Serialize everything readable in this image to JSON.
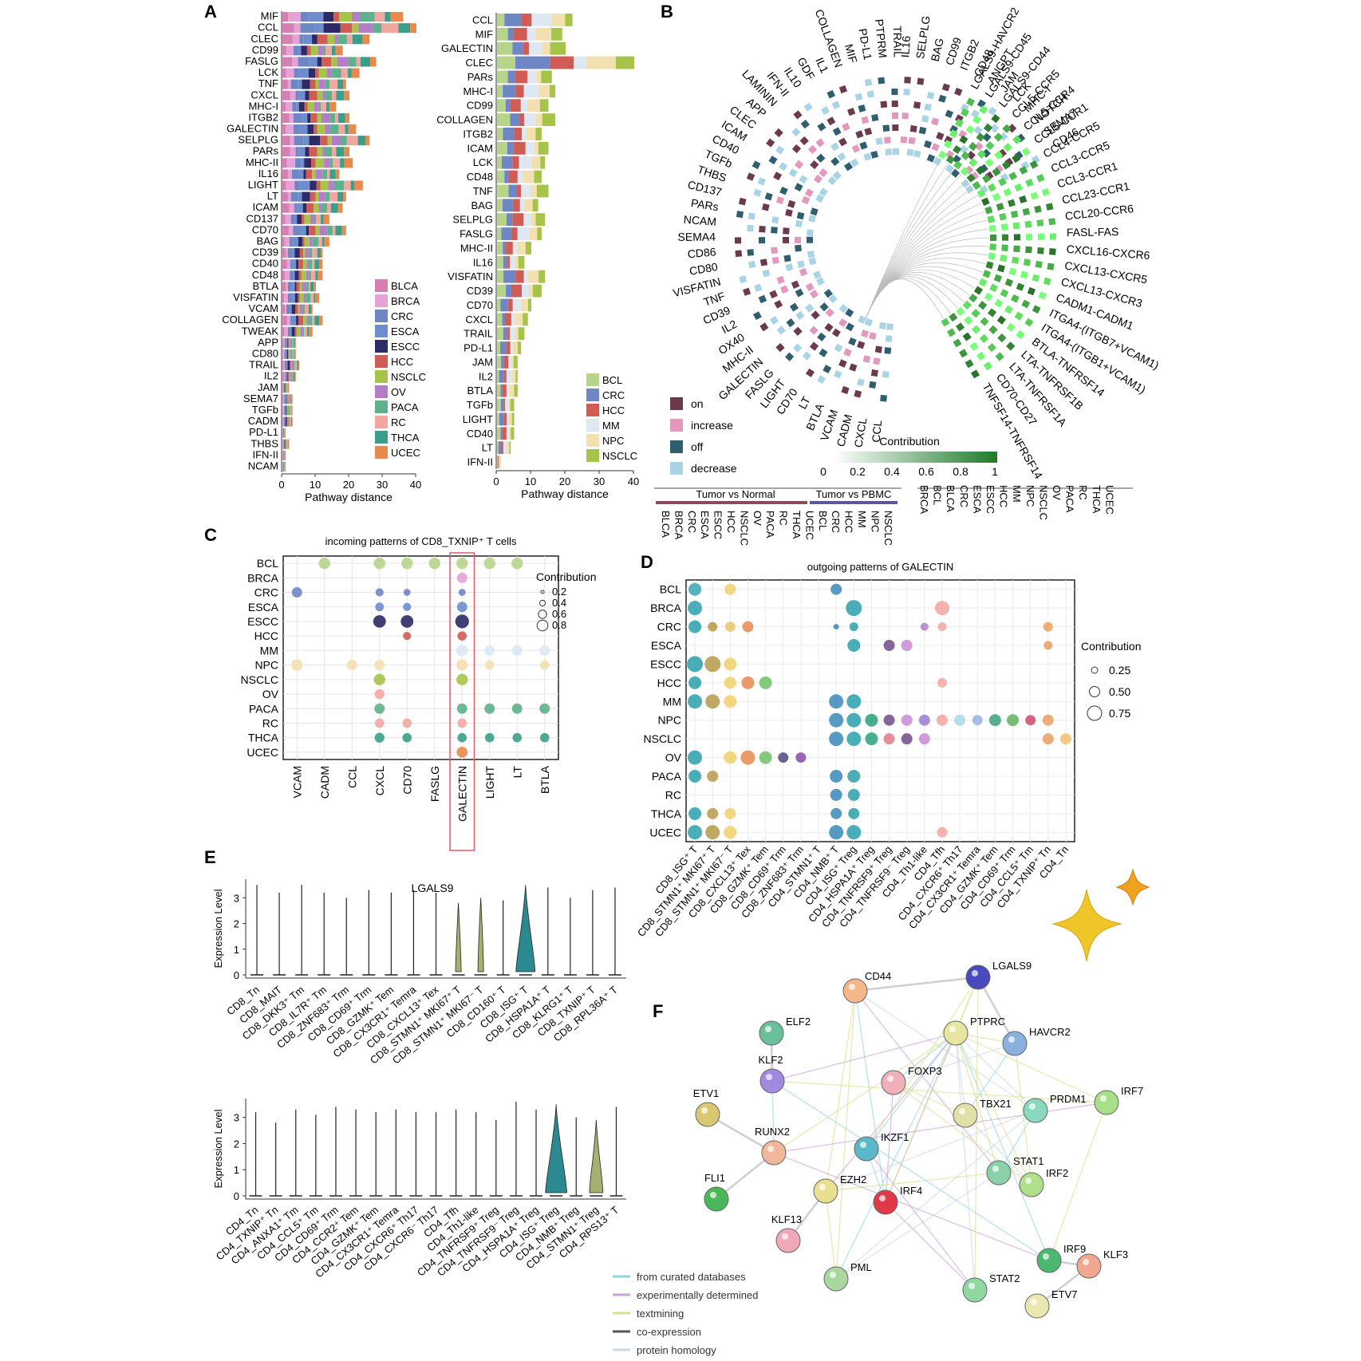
{
  "panel_letters": {
    "A": "A",
    "B": "B",
    "C": "C",
    "D": "D",
    "E": "E",
    "F": "F"
  },
  "colors": {
    "BLCA": "#d67fb2",
    "BRCA": "#e6a1d6",
    "CRC": "#6f86c4",
    "ESCA": "#6e8dcc",
    "ESCC": "#2e2a66",
    "HCC": "#cf5d56",
    "NSCLC": "#a6c34a",
    "OV": "#b37ec7",
    "PACA": "#5fb08c",
    "RC": "#f2a6a0",
    "THCA": "#3a9e8a",
    "UCEC": "#e88a4c",
    "BCL": "#b7d48a",
    "MM": "#dde8f3",
    "NPC": "#f3e0b0",
    "on": "#6b3a4f",
    "increase": "#e398be",
    "off": "#2f5f6e",
    "decrease": "#a8d4e6",
    "network_edge_curated": "#8fd4d8",
    "network_edge_experimental": "#c9a0d8",
    "network_edge_textmining": "#d8e08a",
    "network_edge_coexpression": "#555555",
    "network_edge_homology": "#c8d6e8"
  },
  "panel_A": {
    "left": {
      "categories": [
        "MIF",
        "CCL",
        "CLEC",
        "CD99",
        "FASLG",
        "LCK",
        "TNF",
        "CXCL",
        "MHC-I",
        "ITGB2",
        "GALECTIN",
        "SELPLG",
        "PARs",
        "MHC-II",
        "IL16",
        "LIGHT",
        "LT",
        "ICAM",
        "CD137",
        "CD70",
        "BAG",
        "CD39",
        "CD40",
        "CD48",
        "BTLA",
        "VISFATIN",
        "VCAM",
        "COLLAGEN",
        "TWEAK",
        "APP",
        "CD80",
        "TRAIL",
        "IL2",
        "JAM",
        "SEMA7",
        "TGFb",
        "CADM",
        "PD-L1",
        "THBS",
        "IFN-II",
        "NCAM"
      ],
      "totals": [
        36,
        40,
        26,
        18,
        28,
        23,
        19,
        20,
        16,
        20,
        22,
        26,
        20,
        21,
        17,
        24,
        19,
        18,
        14,
        19,
        14,
        12,
        12,
        12,
        10,
        11,
        9,
        12,
        9,
        4,
        4,
        5,
        4,
        2,
        3,
        3,
        3,
        1,
        2,
        1,
        1
      ],
      "legend": [
        "BLCA",
        "BRCA",
        "CRC",
        "ESCA",
        "ESCC",
        "HCC",
        "NSCLC",
        "OV",
        "PACA",
        "RC",
        "THCA",
        "UCEC"
      ],
      "xlabel": "Pathway distance",
      "xticks": [
        "0",
        "10",
        "20",
        "30",
        "40"
      ]
    },
    "right": {
      "categories": [
        "CCL",
        "MIF",
        "GALECTIN",
        "CLEC",
        "PARs",
        "MHC-I",
        "CD99",
        "COLLAGEN",
        "ITGB2",
        "ICAM",
        "LCK",
        "CD48",
        "TNF",
        "BAG",
        "SELPLG",
        "FASLG",
        "MHC-II",
        "IL16",
        "VISFATIN",
        "CD39",
        "CD70",
        "CXCL",
        "TRAIL",
        "PD-L1",
        "JAM",
        "IL2",
        "BTLA",
        "TGFb",
        "LIGHT",
        "CD40",
        "LT",
        "IFN-II"
      ],
      "totals": [
        22,
        19,
        20,
        40,
        16,
        17,
        15,
        17,
        13,
        15,
        14,
        13,
        15,
        12,
        14,
        13,
        10,
        8,
        14,
        13,
        10,
        9,
        8,
        7,
        6,
        6,
        6,
        5,
        5,
        5,
        4,
        1
      ],
      "legend": [
        "BCL",
        "CRC",
        "HCC",
        "MM",
        "NPC",
        "NSCLC"
      ],
      "xlabel": "Pathway distance",
      "xticks": [
        "0",
        "10",
        "20",
        "30",
        "40"
      ]
    }
  },
  "panel_B": {
    "left_labels": [
      "CCL",
      "CXCL",
      "CADM",
      "VCAM",
      "BTLA",
      "LT",
      "CD70",
      "LIGHT",
      "FASLG",
      "GALECTIN",
      "MHC-II",
      "OX40",
      "IL2",
      "CD39",
      "TNF",
      "VISFATIN",
      "CD80",
      "CD86",
      "SEMA4",
      "NCAM",
      "PARs",
      "CD137",
      "THBS",
      "TGFb",
      "CD40",
      "ICAM",
      "CLEC",
      "APP",
      "LAMININ",
      "IFN-II",
      "IL10",
      "GDF",
      "IL1",
      "COLLAGEN",
      "MIF",
      "PD-L1",
      "PTPRM",
      "TRAIL",
      "IL16",
      "SELPLG",
      "BAG",
      "CD99",
      "ITGB2",
      "CD48",
      "ANGPT",
      "JAM",
      "LCK",
      "MHC-I",
      "NOTCH",
      "SEMA7",
      "CD46"
    ],
    "right_labels": [
      "LGALS9-HAVCR2",
      "LGALS9-CD45",
      "LGALS9-CD44",
      "CCL5-CCR5",
      "CCL5-CCR4",
      "CCL5-CCR1",
      "CCL4-CCR5",
      "CCL3-CCR5",
      "CCL3-CCR1",
      "CCL23-CCR1",
      "CCL20-CCR6",
      "FASL-FAS",
      "CXCL16-CXCR6",
      "CXCL13-CXCR5",
      "CXCL13-CXCR3",
      "CADM1-CADM1",
      "ITGA4-(ITGB7+VCAM1)",
      "ITGA4-(ITGB1+VCAM1)",
      "BTLA-TNFRSF14",
      "LTA-TNFRSF1B",
      "LTA-TNFRSF1A",
      "CD70-CD27",
      "TNFSF14-TNFRSF14"
    ],
    "legend": [
      "on",
      "increase",
      "off",
      "decrease"
    ],
    "contribution_title": "Contribution",
    "contribution_ticks": [
      "0",
      "0.2",
      "0.4",
      "0.6",
      "0.8",
      "1"
    ],
    "group1": "Tumor vs Normal",
    "group2": "Tumor vs PBMC",
    "bottom_left": [
      "BLCA",
      "BRCA",
      "CRC",
      "ESCA",
      "ESCC",
      "HCC",
      "NSCLC",
      "OV",
      "PACA",
      "RC",
      "THCA",
      "UCEC",
      "BCL",
      "CRC",
      "HCC",
      "MM",
      "NPC",
      "NSCLC"
    ],
    "bottom_right": [
      "BRCA",
      "BCL",
      "BLCA",
      "CRC",
      "ESCA",
      "ESCC",
      "HCC",
      "MM",
      "NPC",
      "NSCLC",
      "OV",
      "PACA",
      "RC",
      "THCA",
      "UCEC"
    ]
  },
  "panel_C": {
    "title": "incoming patterns of CD8_TXNIP⁺ T cells",
    "rows": [
      "BCL",
      "BRCA",
      "CRC",
      "ESCA",
      "ESCC",
      "HCC",
      "MM",
      "NPC",
      "NSCLC",
      "OV",
      "PACA",
      "RC",
      "THCA",
      "UCEC"
    ],
    "cols": [
      "VCAM",
      "CADM",
      "CCL",
      "CXCL",
      "CD70",
      "FASLG",
      "GALECTIN",
      "LIGHT",
      "LT",
      "BTLA"
    ],
    "legend_title": "Contribution",
    "legend_values": [
      "0.2",
      "0.4",
      "0.6",
      "0.8"
    ],
    "points": [
      [
        0,
        1,
        0.6,
        "BCL"
      ],
      [
        0,
        3,
        0.6,
        "BCL"
      ],
      [
        0,
        4,
        0.6,
        "BCL"
      ],
      [
        0,
        5,
        0.6,
        "BCL"
      ],
      [
        0,
        6,
        0.6,
        "BCL"
      ],
      [
        0,
        7,
        0.6,
        "BCL"
      ],
      [
        0,
        8,
        0.6,
        "BCL"
      ],
      [
        1,
        6,
        0.5,
        "BRCA"
      ],
      [
        2,
        0,
        0.5,
        "CRC"
      ],
      [
        2,
        3,
        0.3,
        "CRC"
      ],
      [
        2,
        4,
        0.2,
        "CRC"
      ],
      [
        2,
        6,
        0.2,
        "CRC"
      ],
      [
        3,
        3,
        0.35,
        "ESCA"
      ],
      [
        3,
        4,
        0.3,
        "ESCA"
      ],
      [
        3,
        6,
        0.5,
        "ESCA"
      ],
      [
        4,
        3,
        0.7,
        "ESCC"
      ],
      [
        4,
        4,
        0.7,
        "ESCC"
      ],
      [
        4,
        6,
        0.8,
        "ESCC"
      ],
      [
        5,
        4,
        0.3,
        "HCC"
      ],
      [
        5,
        6,
        0.4,
        "HCC"
      ],
      [
        6,
        6,
        0.6,
        "MM"
      ],
      [
        6,
        7,
        0.5,
        "MM"
      ],
      [
        6,
        8,
        0.5,
        "MM"
      ],
      [
        6,
        9,
        0.5,
        "MM"
      ],
      [
        7,
        0,
        0.6,
        "NPC"
      ],
      [
        7,
        2,
        0.5,
        "NPC"
      ],
      [
        7,
        3,
        0.5,
        "NPC"
      ],
      [
        7,
        6,
        0.6,
        "NPC"
      ],
      [
        7,
        7,
        0.4,
        "NPC"
      ],
      [
        7,
        9,
        0.4,
        "NPC"
      ],
      [
        8,
        3,
        0.6,
        "NSCLC"
      ],
      [
        8,
        6,
        0.6,
        "NSCLC"
      ],
      [
        9,
        3,
        0.45,
        "RC"
      ],
      [
        10,
        3,
        0.5,
        "PACA"
      ],
      [
        10,
        6,
        0.5,
        "PACA"
      ],
      [
        10,
        7,
        0.5,
        "PACA"
      ],
      [
        10,
        8,
        0.5,
        "PACA"
      ],
      [
        10,
        9,
        0.5,
        "PACA"
      ],
      [
        11,
        3,
        0.4,
        "RC"
      ],
      [
        11,
        4,
        0.4,
        "RC"
      ],
      [
        11,
        6,
        0.4,
        "RC"
      ],
      [
        12,
        3,
        0.45,
        "THCA"
      ],
      [
        12,
        4,
        0.4,
        "THCA"
      ],
      [
        12,
        6,
        0.4,
        "THCA"
      ],
      [
        12,
        7,
        0.4,
        "THCA"
      ],
      [
        12,
        8,
        0.4,
        "THCA"
      ],
      [
        12,
        9,
        0.4,
        "THCA"
      ],
      [
        13,
        6,
        0.55,
        "UCEC"
      ]
    ]
  },
  "panel_D": {
    "title": "outgoing patterns of GALECTIN",
    "rows": [
      "BCL",
      "BRCA",
      "CRC",
      "ESCA",
      "ESCC",
      "HCC",
      "MM",
      "NPC",
      "NSCLC",
      "OV",
      "PACA",
      "RC",
      "THCA",
      "UCEC"
    ],
    "cols": [
      "CD8_ISG⁺ T",
      "CD8_STMN1⁺ MKI67⁺ T",
      "CD8_STMN1⁺ MKI67⁻ T",
      "CD8_CXCL13⁺ Tex",
      "CD8_GZMK⁺ Tem",
      "CD8_CD69⁺ Trm",
      "CD8_ZNF683⁺ Trm",
      "CD4_STMN1⁺ T",
      "CD4_NMB⁺ T",
      "CD4_ISG⁺ Treg",
      "CD4_HSPA1A⁺ Treg",
      "CD4_TNFRSF9⁺ Treg",
      "CD4_TNFRSF9⁻ Treg",
      "CD4_Th1-like",
      "CD4_Tfh",
      "CD4_CXCR6⁺ Th17",
      "CD4_CX3CR1⁺ Temra",
      "CD4_GZMK⁺ Tem",
      "CD4_CD69⁺ Trm",
      "CD4_CCL5⁺ Tm",
      "CD4_TXNIP⁺ Tn",
      "CD4_Tn"
    ],
    "legend_title": "Contribution",
    "legend_values": [
      "0.25",
      "0.50",
      "0.75"
    ],
    "points": [
      [
        0,
        0,
        0.6,
        "#3aa3b3"
      ],
      [
        0,
        2,
        0.5,
        "#f0cf6a"
      ],
      [
        0,
        8,
        0.5,
        "#3a8ab8"
      ],
      [
        1,
        0,
        0.7,
        "#2aa0ad"
      ],
      [
        1,
        9,
        0.8,
        "#2aa0ad"
      ],
      [
        1,
        14,
        0.7,
        "#f2a6a0"
      ],
      [
        2,
        0,
        0.6,
        "#2aa0ad"
      ],
      [
        2,
        1,
        0.4,
        "#b59a4a"
      ],
      [
        2,
        2,
        0.45,
        "#e6c86a"
      ],
      [
        2,
        3,
        0.5,
        "#e88a4c"
      ],
      [
        2,
        8,
        0.15,
        "#3a8ab8"
      ],
      [
        2,
        9,
        0.35,
        "#2aa0ad"
      ],
      [
        2,
        13,
        0.3,
        "#b37ec7"
      ],
      [
        2,
        14,
        0.35,
        "#f2a6a0"
      ],
      [
        2,
        20,
        0.4,
        "#e8a060"
      ],
      [
        3,
        9,
        0.6,
        "#2aa0ad"
      ],
      [
        3,
        11,
        0.5,
        "#6e4b8b"
      ],
      [
        3,
        12,
        0.5,
        "#c98ad6"
      ],
      [
        3,
        20,
        0.35,
        "#e8a060"
      ],
      [
        4,
        0,
        0.8,
        "#2aa0ad"
      ],
      [
        4,
        1,
        0.8,
        "#b59a4a"
      ],
      [
        4,
        2,
        0.6,
        "#f0cf6a"
      ],
      [
        5,
        0,
        0.6,
        "#2aa0ad"
      ],
      [
        5,
        2,
        0.55,
        "#f0cf6a"
      ],
      [
        5,
        3,
        0.6,
        "#e88a4c"
      ],
      [
        5,
        4,
        0.6,
        "#6fbf6a"
      ],
      [
        5,
        14,
        0.4,
        "#f2a6a0"
      ],
      [
        6,
        0,
        0.7,
        "#2aa0ad"
      ],
      [
        6,
        1,
        0.7,
        "#b59a4a"
      ],
      [
        6,
        2,
        0.6,
        "#f0cf6a"
      ],
      [
        6,
        8,
        0.7,
        "#3a8ab8"
      ],
      [
        6,
        9,
        0.7,
        "#2aa0ad"
      ],
      [
        7,
        8,
        0.7,
        "#3a8ab8"
      ],
      [
        7,
        9,
        0.7,
        "#2aa0ad"
      ],
      [
        7,
        10,
        0.6,
        "#27a07a"
      ],
      [
        7,
        11,
        0.5,
        "#6e4b8b"
      ],
      [
        7,
        12,
        0.5,
        "#c98ad6"
      ],
      [
        7,
        13,
        0.5,
        "#9a7ad6"
      ],
      [
        7,
        14,
        0.5,
        "#f2a6a0"
      ],
      [
        7,
        15,
        0.5,
        "#a8d8ea"
      ],
      [
        7,
        16,
        0.45,
        "#9ab0e0"
      ],
      [
        7,
        17,
        0.55,
        "#3aa080"
      ],
      [
        7,
        18,
        0.55,
        "#5fb05f"
      ],
      [
        7,
        19,
        0.45,
        "#d04a6a"
      ],
      [
        7,
        20,
        0.5,
        "#e8a060"
      ],
      [
        8,
        8,
        0.7,
        "#3a8ab8"
      ],
      [
        8,
        9,
        0.7,
        "#2aa0ad"
      ],
      [
        8,
        10,
        0.6,
        "#27a07a"
      ],
      [
        8,
        11,
        0.5,
        "#e07a8a"
      ],
      [
        8,
        12,
        0.5,
        "#6e4b8b"
      ],
      [
        8,
        13,
        0.5,
        "#c98ad6"
      ],
      [
        8,
        20,
        0.5,
        "#e8a060"
      ],
      [
        8,
        21,
        0.5,
        "#f0c070"
      ],
      [
        9,
        0,
        0.7,
        "#2aa0ad"
      ],
      [
        9,
        2,
        0.6,
        "#f0cf6a"
      ],
      [
        9,
        3,
        0.7,
        "#e88a4c"
      ],
      [
        9,
        4,
        0.6,
        "#6fbf6a"
      ],
      [
        9,
        5,
        0.45,
        "#4a4a7a"
      ],
      [
        9,
        6,
        0.45,
        "#8a4aa6"
      ],
      [
        10,
        0,
        0.6,
        "#2aa0ad"
      ],
      [
        10,
        1,
        0.5,
        "#b59a4a"
      ],
      [
        10,
        8,
        0.6,
        "#3a8ab8"
      ],
      [
        10,
        9,
        0.6,
        "#2aa0ad"
      ],
      [
        11,
        8,
        0.55,
        "#3a8ab8"
      ],
      [
        11,
        9,
        0.55,
        "#2aa0ad"
      ],
      [
        12,
        0,
        0.6,
        "#2aa0ad"
      ],
      [
        12,
        1,
        0.5,
        "#b59a4a"
      ],
      [
        12,
        2,
        0.5,
        "#f0cf6a"
      ],
      [
        12,
        8,
        0.5,
        "#3a8ab8"
      ],
      [
        12,
        9,
        0.5,
        "#2aa0ad"
      ],
      [
        13,
        0,
        0.7,
        "#2aa0ad"
      ],
      [
        13,
        1,
        0.7,
        "#b59a4a"
      ],
      [
        13,
        2,
        0.6,
        "#f0cf6a"
      ],
      [
        13,
        8,
        0.7,
        "#3a8ab8"
      ],
      [
        13,
        9,
        0.7,
        "#2aa0ad"
      ],
      [
        13,
        14,
        0.45,
        "#f2a6a0"
      ]
    ]
  },
  "panel_E": {
    "title": "LGALS9",
    "ylabel": "Expression Level",
    "yticks": [
      "0",
      "1",
      "2",
      "3"
    ],
    "top_groups": [
      "CD8_Tn",
      "CD8_MAIT",
      "CD8_DKK3⁺ Tm",
      "CD8_IL7R⁺ Tm",
      "CD8_ZNF683⁺ Trm",
      "CD8_CD69⁺ Trm",
      "CD8_GZMK⁺ Tem",
      "CD8_CX3CR1⁺ Temra",
      "CD8_CXCL13⁺ Tex",
      "CD8_STMN1⁺ MKI67⁺ T",
      "CD8_STMN1⁺ MKI67⁻ T",
      "CD8_CD160⁺ T",
      "CD8_ISG⁺ T",
      "CD8_HSPA1A⁺ T",
      "CD8_KLRG1⁺ T",
      "CD8_TXNIP⁺ T",
      "CD8_RPL36A⁺ T"
    ],
    "top_max": [
      3.5,
      3.2,
      3.5,
      3.2,
      3.0,
      3.3,
      3.2,
      3.3,
      3.2,
      2.8,
      3.0,
      2.9,
      3.5,
      3.4,
      3.0,
      3.3,
      3.4
    ],
    "top_width": [
      0.02,
      0.02,
      0.02,
      0.02,
      0.02,
      0.02,
      0.02,
      0.02,
      0.02,
      0.25,
      0.25,
      0.05,
      0.85,
      0.05,
      0.02,
      0.02,
      0.02
    ],
    "bottom_groups": [
      "CD4_Tn",
      "CD4_TXNIP⁺ Tn",
      "CD4_ANXA1⁺ Tm",
      "CD4_CCL5⁺ Tm",
      "CD4_CD69⁺ Trm",
      "CD4_CCR2⁺ Tem",
      "CD4_GZMK⁺ Tem",
      "CD4_CX3CR1⁺ Temra",
      "CD4_CXCR6⁺ Th17",
      "CD4_CXCR6⁻ Th17",
      "CD4_Tfh",
      "CD4_Th1-like",
      "CD4_TNFRSF9⁺ Treg",
      "CD4_TNFRSF9⁻ Treg",
      "CD4_HSPA1A⁺ Treg",
      "CD4_ISG⁺ Treg",
      "CD4_NMB⁺ Treg",
      "CD4_STMN1⁺ Treg",
      "CD4_RPS13⁺ T"
    ],
    "bottom_max": [
      3.2,
      2.8,
      3.3,
      3.1,
      3.4,
      3.3,
      3.2,
      3.3,
      3.2,
      3.2,
      3.3,
      3.2,
      2.9,
      3.6,
      3.3,
      3.5,
      3.0,
      2.9,
      3.4
    ],
    "bottom_width": [
      0.02,
      0.02,
      0.02,
      0.02,
      0.02,
      0.02,
      0.02,
      0.02,
      0.02,
      0.02,
      0.02,
      0.02,
      0.02,
      0.02,
      0.02,
      0.95,
      0.05,
      0.6,
      0.02
    ]
  },
  "panel_F": {
    "nodes": [
      {
        "name": "CD44",
        "color": "#f2b88a"
      },
      {
        "name": "LGALS9",
        "color": "#4a4ac0"
      },
      {
        "name": "ELF2",
        "color": "#6ac09a"
      },
      {
        "name": "PTPRC",
        "color": "#e6e6a0"
      },
      {
        "name": "HAVCR2",
        "color": "#8ab0e0"
      },
      {
        "name": "KLF2",
        "color": "#a08ae0"
      },
      {
        "name": "FOXP3",
        "color": "#f0b0b8"
      },
      {
        "name": "ETV1",
        "color": "#d8c870"
      },
      {
        "name": "TBX21",
        "color": "#e0e0a8"
      },
      {
        "name": "PRDM1",
        "color": "#8ad8c0"
      },
      {
        "name": "IRF7",
        "color": "#a8e08a"
      },
      {
        "name": "RUNX2",
        "color": "#f0b89a"
      },
      {
        "name": "IKZF1",
        "color": "#5ab8c8"
      },
      {
        "name": "STAT1",
        "color": "#8ad0a8"
      },
      {
        "name": "FLI1",
        "color": "#4ab85a"
      },
      {
        "name": "EZH2",
        "color": "#e8e090"
      },
      {
        "name": "IRF4",
        "color": "#e03a4a"
      },
      {
        "name": "IRF2",
        "color": "#b0e08a"
      },
      {
        "name": "KLF13",
        "color": "#f0a8b8"
      },
      {
        "name": "IRF9",
        "color": "#4ab870"
      },
      {
        "name": "KLF3",
        "color": "#f0a890"
      },
      {
        "name": "PML",
        "color": "#a8d8a0"
      },
      {
        "name": "STAT2",
        "color": "#90d8a0"
      },
      {
        "name": "ETV7",
        "color": "#e8e8b0"
      }
    ],
    "legend": [
      "from curated databases",
      "experimentally determined",
      "textmining",
      "co-expression",
      "protein homology"
    ]
  }
}
